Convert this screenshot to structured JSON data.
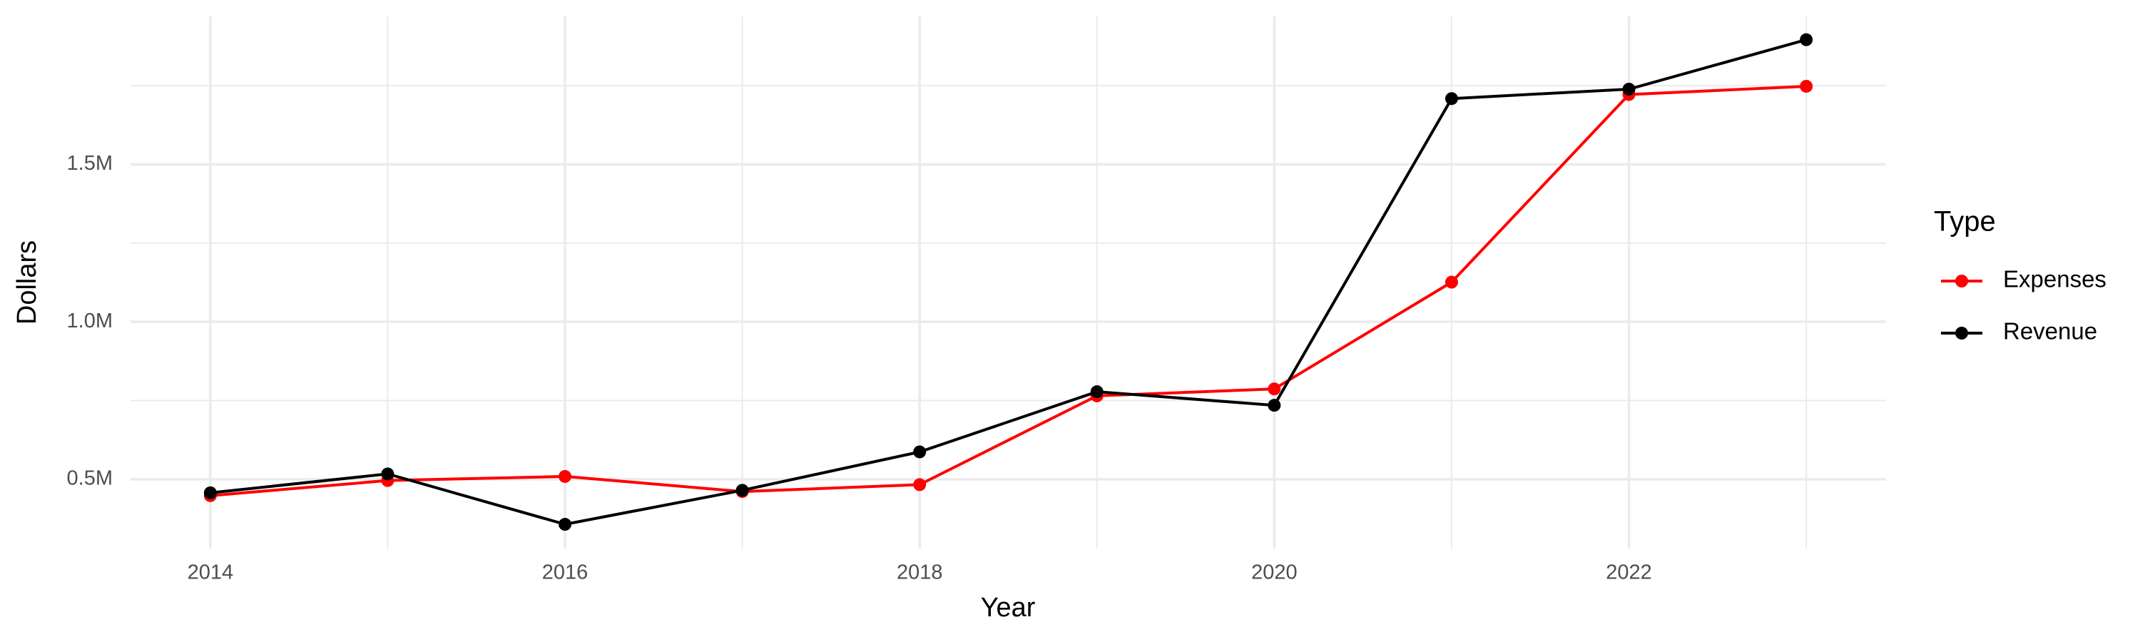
{
  "chart_data": {
    "type": "line",
    "x_label": "Year",
    "y_label": "Dollars",
    "legend_title": "Type",
    "legend": "right",
    "x": [
      2014,
      2015,
      2016,
      2017,
      2018,
      2019,
      2020,
      2021,
      2022,
      2023
    ],
    "series": [
      {
        "name": "Expenses",
        "color": "#ff0000",
        "values": [
          448000,
          496000,
          509000,
          461000,
          483000,
          765000,
          787000,
          1126000,
          1722000,
          1748000
        ]
      },
      {
        "name": "Revenue",
        "color": "#000000",
        "values": [
          457000,
          517000,
          357000,
          465000,
          587000,
          778000,
          735000,
          1709000,
          1739000,
          1896000
        ]
      }
    ],
    "xlim": [
      2013.55,
      2023.45
    ],
    "xticks": [
      2014,
      2016,
      2018,
      2020,
      2022
    ],
    "ylim": [
      280000,
      1970000
    ],
    "yticks": [
      {
        "value": 500000,
        "label": "0.5M"
      },
      {
        "value": 1000000,
        "label": "1.0M"
      },
      {
        "value": 1500000,
        "label": "1.5M"
      }
    ],
    "grid": true,
    "minor_grid": true
  }
}
